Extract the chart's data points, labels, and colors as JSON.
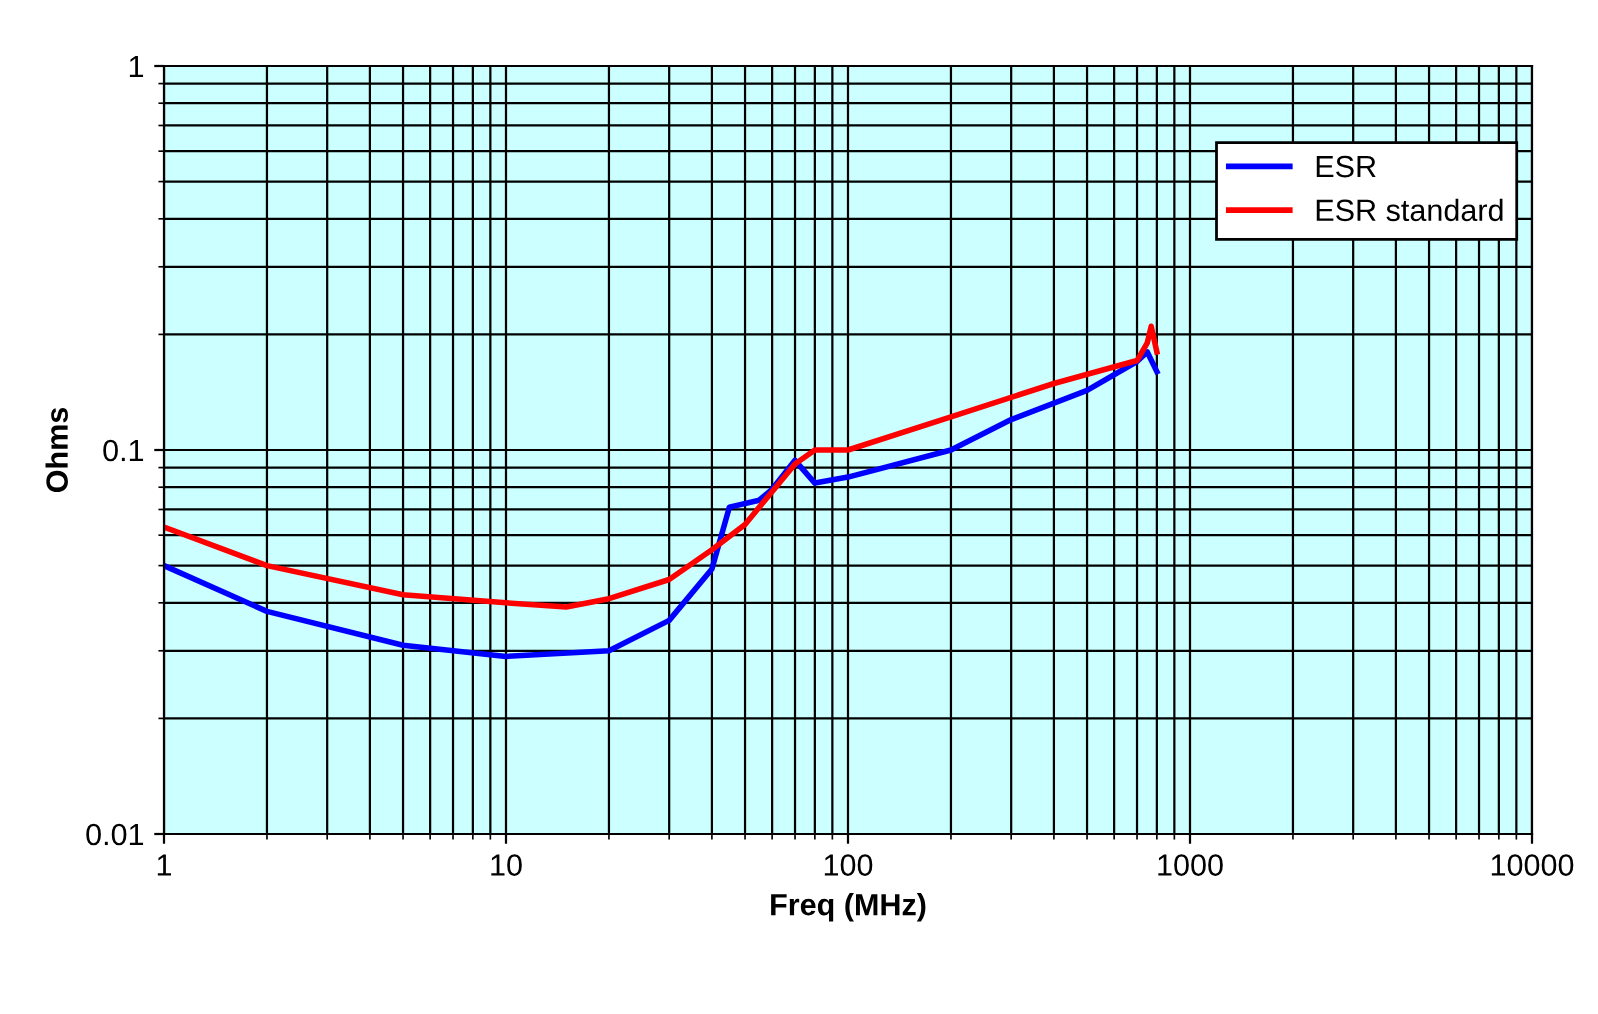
{
  "chart_data": {
    "type": "line",
    "xlabel": "Freq (MHz)",
    "ylabel": "Ohms",
    "log": "xy",
    "grid": true,
    "legend": "top right",
    "marker": "none",
    "line_style": "solid",
    "xlim": [
      1,
      10000
    ],
    "xticks": [
      1,
      10,
      100,
      1000,
      10000
    ],
    "ylim": [
      0.01,
      1
    ],
    "yticks": [
      0.01,
      0.1,
      1
    ],
    "series": [
      {
        "name": "ESR",
        "color": "#0000ff",
        "x": [
          1,
          2,
          5,
          10,
          20,
          30,
          40,
          45,
          55,
          60,
          70,
          80,
          100,
          200,
          300,
          500,
          700,
          750,
          800
        ],
        "values": [
          0.05,
          0.038,
          0.031,
          0.029,
          0.03,
          0.036,
          0.049,
          0.071,
          0.074,
          0.079,
          0.094,
          0.082,
          0.085,
          0.1,
          0.12,
          0.143,
          0.17,
          0.18,
          0.16
        ]
      },
      {
        "name": "ESR standard",
        "color": "#ff0000",
        "x": [
          1,
          2,
          5,
          10,
          15,
          20,
          30,
          40,
          50,
          70,
          80,
          100,
          200,
          400,
          700,
          750,
          770,
          800
        ],
        "values": [
          0.063,
          0.05,
          0.042,
          0.04,
          0.039,
          0.041,
          0.046,
          0.055,
          0.064,
          0.092,
          0.1,
          0.1,
          0.122,
          0.149,
          0.171,
          0.19,
          0.21,
          0.18
        ]
      }
    ]
  }
}
